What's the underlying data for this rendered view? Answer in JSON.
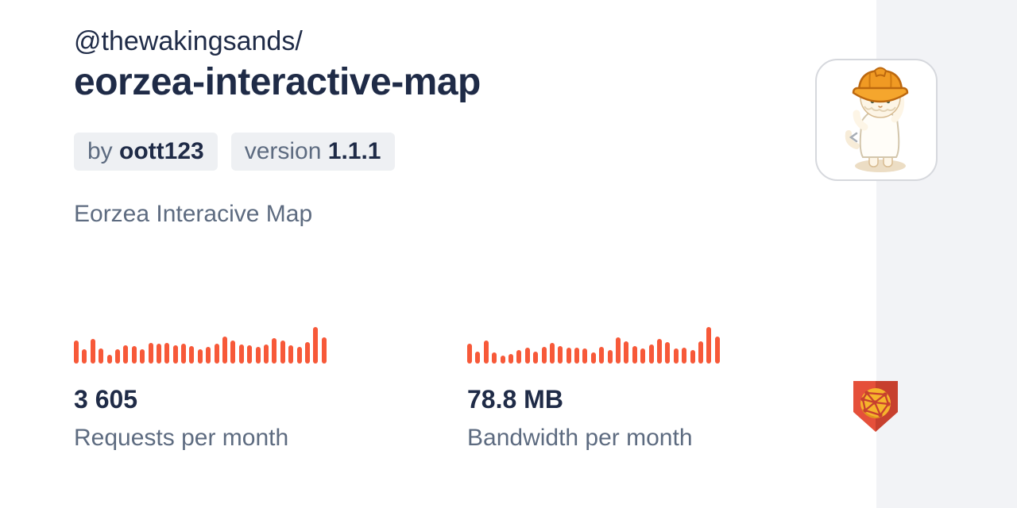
{
  "header": {
    "scope": "@thewakingsands/",
    "name": "eorzea-interactive-map"
  },
  "badges": {
    "author": {
      "prefix": "by ",
      "value": "oott123"
    },
    "version": {
      "prefix": "version ",
      "value": "1.1.1"
    }
  },
  "description": "Eorzea Interacive Map",
  "stats": [
    {
      "value": "3 605",
      "label": "Requests per month"
    },
    {
      "value": "78.8 MB",
      "label": "Bandwidth per month"
    }
  ],
  "icons": {
    "avatar": "mascot-construction-cat-avatar",
    "logo": "jsdelivr-shield-globe-logo",
    "chevron": "small-chevron-mark"
  },
  "colors": {
    "heading": "#1f2b47",
    "muted_text": "#5d6b80",
    "badge_bg": "#eef0f3",
    "accent_orange": "#f75939",
    "strip_bg": "#f2f3f6",
    "logo_red_light": "#e5503a",
    "logo_red_dark": "#c7402e",
    "logo_globe_yellow": "#f6b42c"
  },
  "chart_data": [
    {
      "type": "bar",
      "name": "requests-per-month-sparkline",
      "title": "Requests per month sparkline (relative daily values, unlabeled axes)",
      "color": "#f75939",
      "ymax": 100,
      "values": [
        62,
        40,
        68,
        42,
        24,
        40,
        50,
        48,
        40,
        56,
        54,
        56,
        50,
        54,
        48,
        40,
        46,
        54,
        74,
        62,
        52,
        50,
        46,
        52,
        70,
        62,
        50,
        46,
        58,
        100,
        71
      ]
    },
    {
      "type": "bar",
      "name": "bandwidth-per-month-sparkline",
      "title": "Bandwidth per month sparkline (relative daily values, unlabeled axes)",
      "color": "#f75939",
      "ymax": 100,
      "values": [
        55,
        33,
        63,
        31,
        21,
        26,
        37,
        43,
        33,
        46,
        56,
        48,
        44,
        43,
        41,
        31,
        46,
        38,
        71,
        60,
        48,
        41,
        52,
        67,
        58,
        41,
        44,
        38,
        61,
        100,
        73
      ]
    }
  ]
}
